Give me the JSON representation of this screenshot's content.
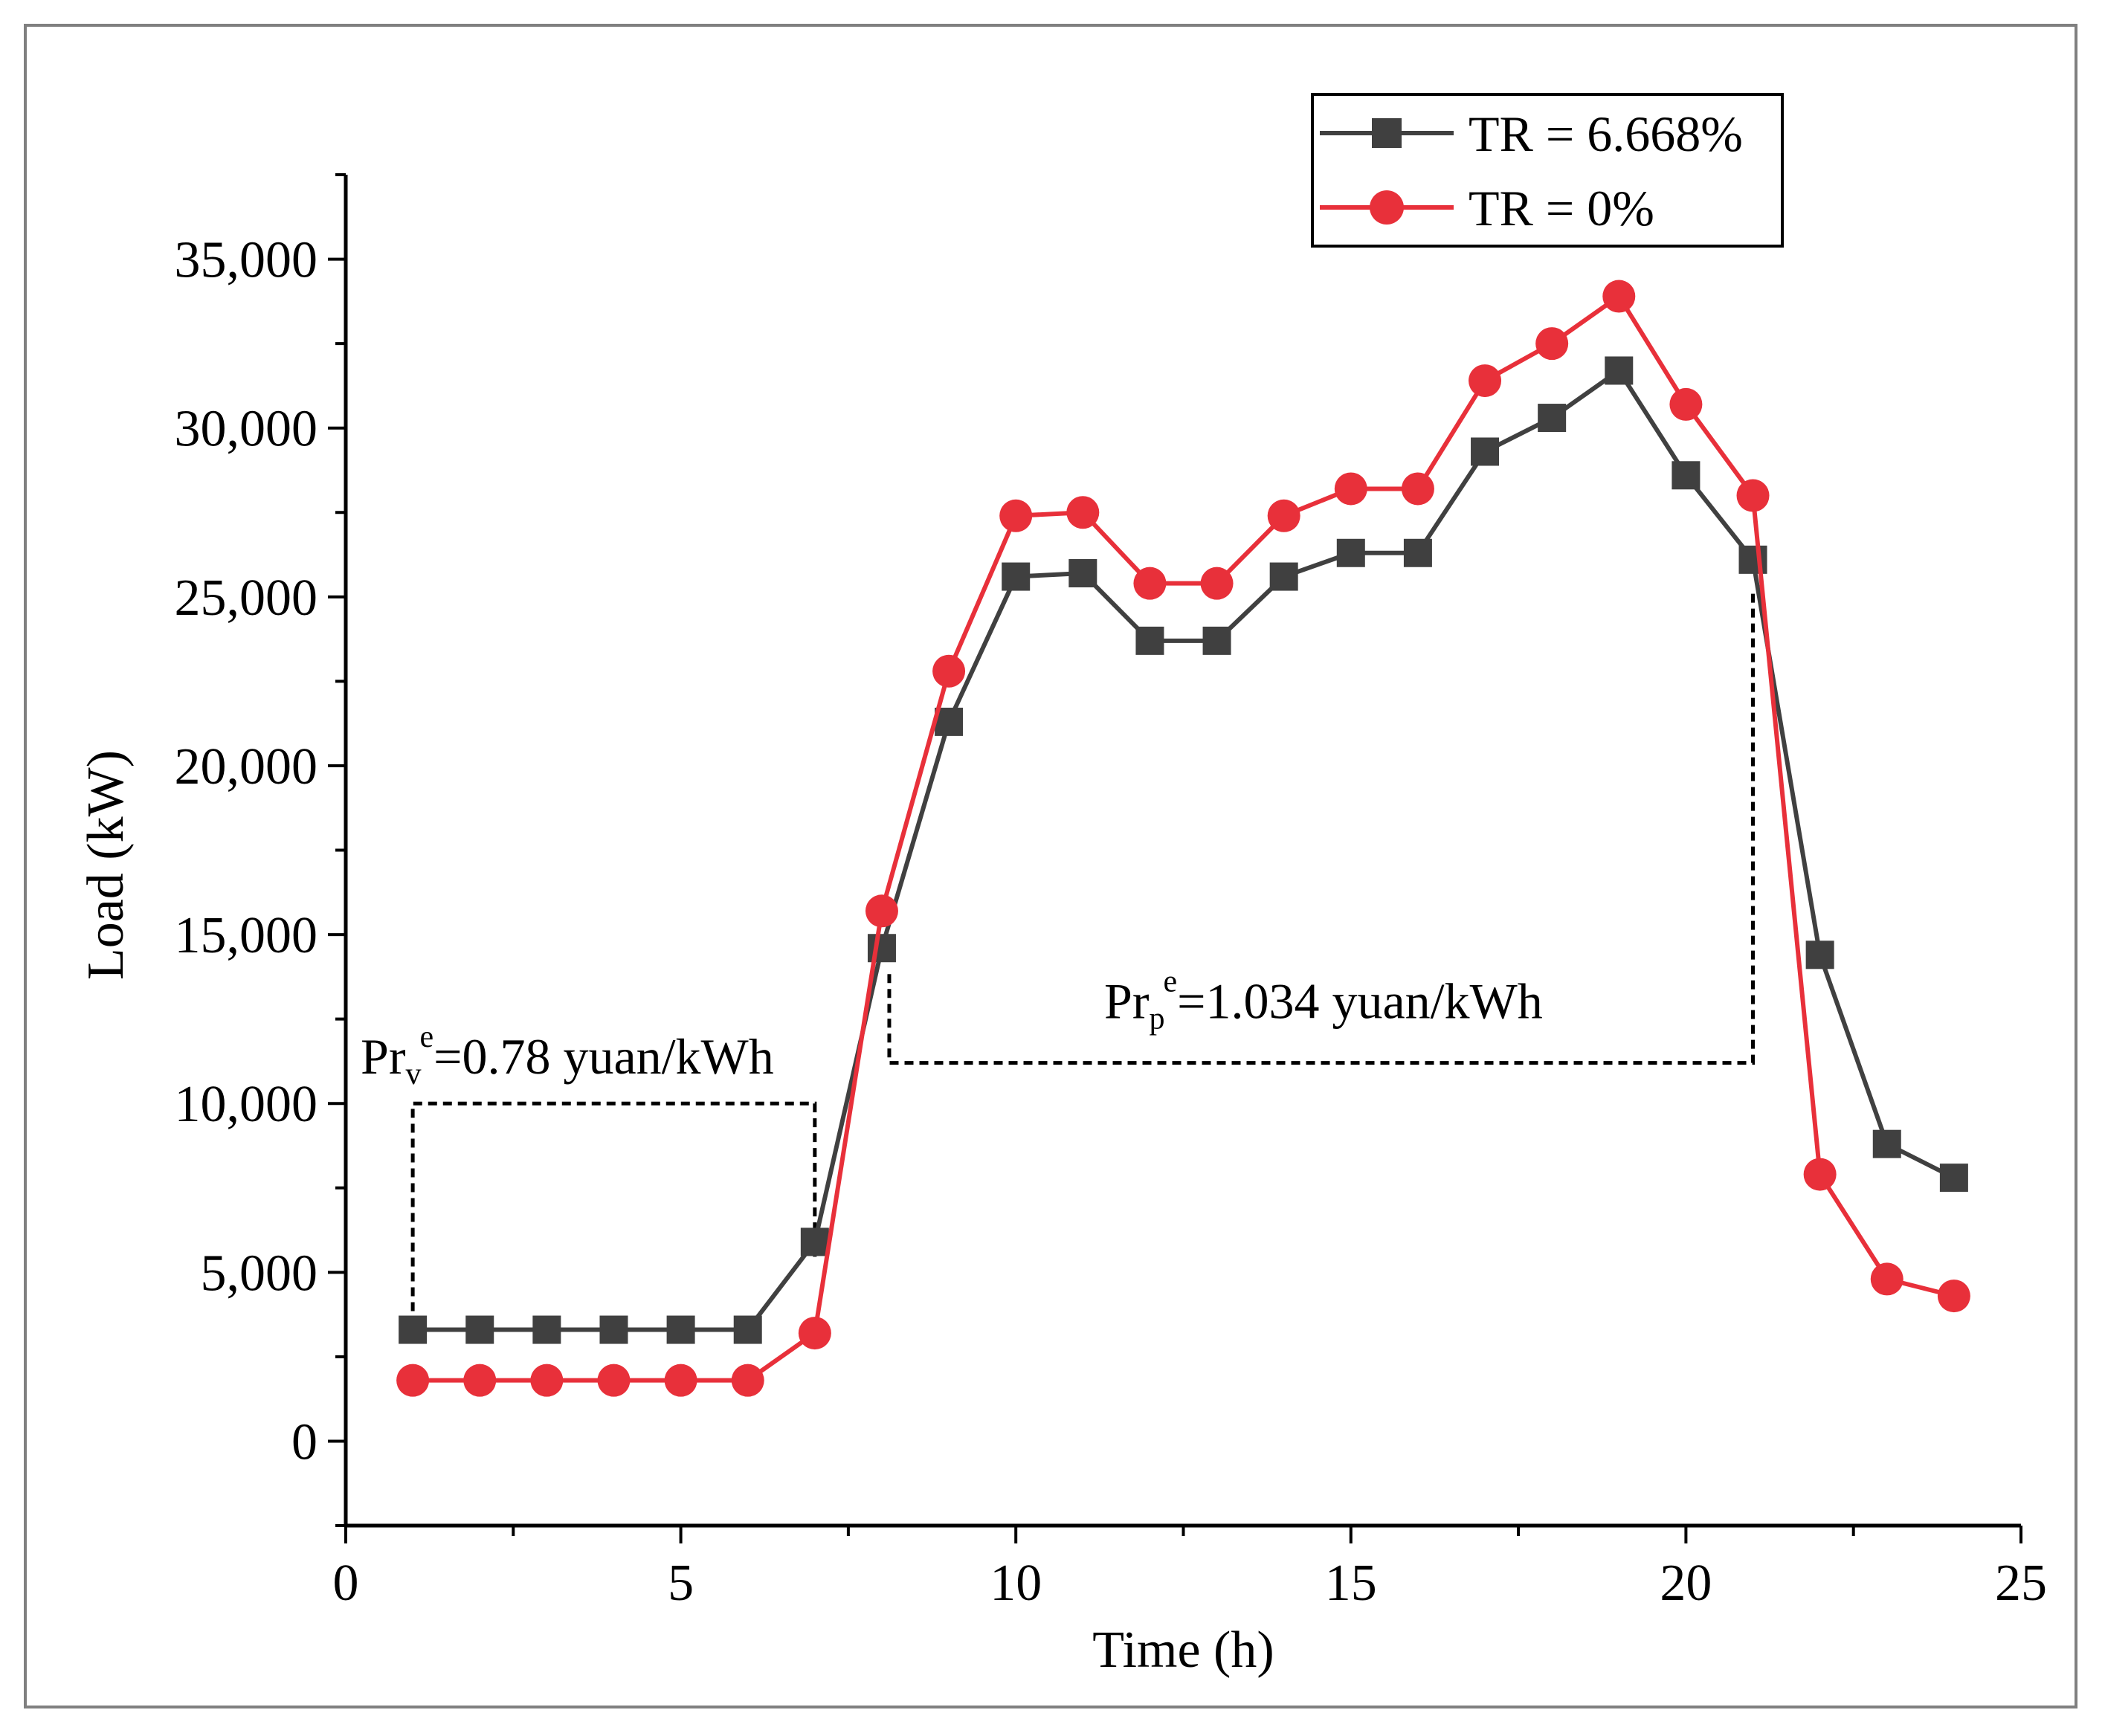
{
  "chart_data": {
    "type": "line",
    "xlabel": "Time (h)",
    "ylabel": "Load (kW)",
    "xlim": [
      0,
      25
    ],
    "ylim": [
      -2500,
      37500
    ],
    "x_ticks": [
      "0",
      "5",
      "10",
      "15",
      "20",
      "25"
    ],
    "y_ticks": [
      "0",
      "5,000",
      "10,000",
      "15,000",
      "20,000",
      "25,000",
      "30,000",
      "35,000"
    ],
    "x": [
      1,
      2,
      3,
      4,
      5,
      6,
      7,
      8,
      9,
      10,
      11,
      12,
      13,
      14,
      15,
      16,
      17,
      18,
      19,
      20,
      21,
      22,
      23,
      24
    ],
    "series": [
      {
        "name": "TR = 6.668%",
        "color": "#404040",
        "marker": "square",
        "values": [
          3300,
          3300,
          3300,
          3300,
          3300,
          3300,
          5900,
          14600,
          21300,
          25600,
          25700,
          23700,
          23700,
          25600,
          26300,
          26300,
          29300,
          30300,
          31700,
          28600,
          26100,
          14400,
          8800,
          7800
        ]
      },
      {
        "name": "TR = 0%",
        "color": "#e8303a",
        "marker": "circle",
        "values": [
          1800,
          1800,
          1800,
          1800,
          1800,
          1800,
          3200,
          15700,
          22800,
          27400,
          27500,
          25400,
          25400,
          27400,
          28200,
          28200,
          31400,
          32500,
          33900,
          30700,
          28000,
          7900,
          4800,
          4300
        ]
      }
    ],
    "annotations": [
      {
        "base": "Pr",
        "sub": "v",
        "sup": "e",
        "rest": "=0.78 yuan/kWh",
        "bracket_x": [
          1,
          7
        ],
        "bracket_y": 10000
      },
      {
        "base": "Pr",
        "sub": "p",
        "sup": "e",
        "rest": "=1.034 yuan/kWh",
        "bracket_x": [
          8,
          21
        ],
        "bracket_y": 11200
      }
    ],
    "legend_position": "top-right",
    "grid": false
  }
}
